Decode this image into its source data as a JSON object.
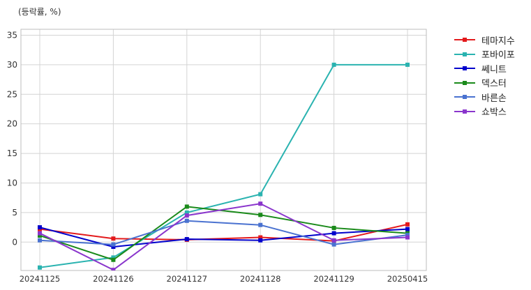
{
  "chart_data": {
    "type": "line",
    "title": "",
    "unit_label": "(등락률, %)",
    "xlabel": "",
    "ylabel": "",
    "categories": [
      "20241125",
      "20241126",
      "20241127",
      "20241128",
      "20241129",
      "20250415"
    ],
    "ylim": [
      -4.8,
      36
    ],
    "yticks": [
      0,
      5,
      10,
      15,
      20,
      25,
      30,
      35
    ],
    "grid": true,
    "legend_position": "outside-right",
    "series": [
      {
        "name": "테마지수",
        "color": "#e31a1c",
        "values": [
          2.2,
          0.6,
          0.4,
          0.8,
          0.2,
          3.0
        ]
      },
      {
        "name": "포바이포",
        "color": "#2ab3b0",
        "values": [
          -4.3,
          -2.6,
          5.0,
          8.1,
          30.0,
          30.0
        ]
      },
      {
        "name": "쎄니트",
        "color": "#0000cc",
        "values": [
          2.5,
          -0.8,
          0.5,
          0.3,
          1.5,
          2.2
        ]
      },
      {
        "name": "덱스터",
        "color": "#1a8a1a",
        "values": [
          1.1,
          -3.0,
          6.0,
          4.6,
          2.4,
          1.5
        ]
      },
      {
        "name": "바른손",
        "color": "#4a72d0",
        "values": [
          0.3,
          -0.4,
          3.6,
          2.9,
          -0.4,
          1.2
        ]
      },
      {
        "name": "쇼박스",
        "color": "#8a35cc",
        "values": [
          1.5,
          -4.7,
          4.5,
          6.5,
          0.3,
          0.8
        ]
      }
    ]
  }
}
